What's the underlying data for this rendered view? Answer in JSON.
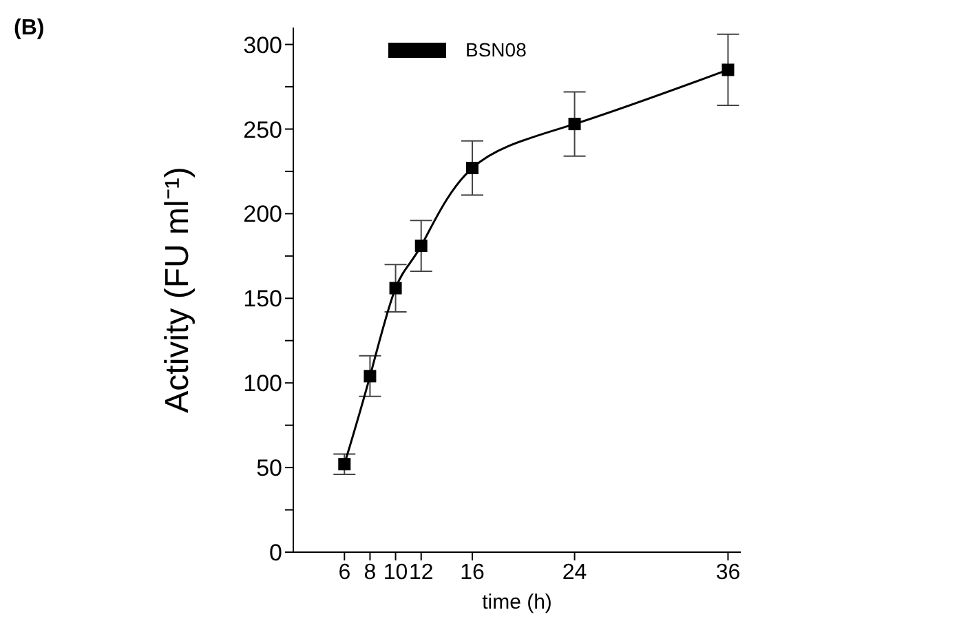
{
  "chart_data": {
    "type": "line",
    "xlabel": "time (h)",
    "ylabel": "Activity (FU ml⁻¹)",
    "annotations": [
      "(B)"
    ],
    "x": [
      6,
      8,
      10,
      12,
      16,
      24,
      36
    ],
    "series": [
      {
        "name": "BSN08",
        "color": "#000000",
        "values": [
          52,
          104,
          156,
          181,
          227,
          253,
          285
        ],
        "errors": [
          6,
          12,
          14,
          15,
          16,
          19,
          21
        ]
      }
    ],
    "xlim": [
      2,
      37
    ],
    "xticks": [
      6,
      8,
      10,
      12,
      16,
      24,
      36
    ],
    "ylim": [
      0,
      310
    ],
    "yticks": [
      0,
      {
        "value": 25,
        "label": null
      },
      50,
      {
        "value": 75,
        "label": null
      },
      100,
      {
        "value": 125,
        "label": null
      },
      150,
      {
        "value": 175,
        "label": null
      },
      200,
      {
        "value": 225,
        "label": null
      },
      250,
      {
        "value": 275,
        "label": null
      },
      300
    ],
    "grid": false,
    "legend": "top left",
    "marker": "square",
    "line_style": "solid"
  }
}
